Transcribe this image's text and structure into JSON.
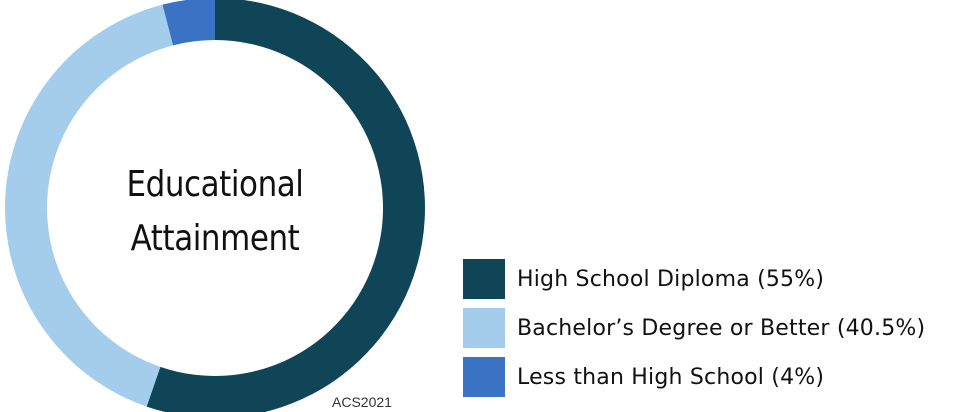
{
  "chart_data": {
    "type": "pie",
    "title_lines": [
      "Educational",
      "Attainment"
    ],
    "source": "ACS2021",
    "slices": [
      {
        "label": "High School Diploma (55%)",
        "value": 55,
        "color": "#0f4557"
      },
      {
        "label": "Bachelor’s Degree or Better (40.5%)",
        "value": 40.5,
        "color": "#a3cdeb"
      },
      {
        "label": "Less than High School (4%)",
        "value": 4,
        "color": "#3a73c4"
      }
    ],
    "legend_position": "bottom-right",
    "start_direction": "top",
    "donut": true
  }
}
